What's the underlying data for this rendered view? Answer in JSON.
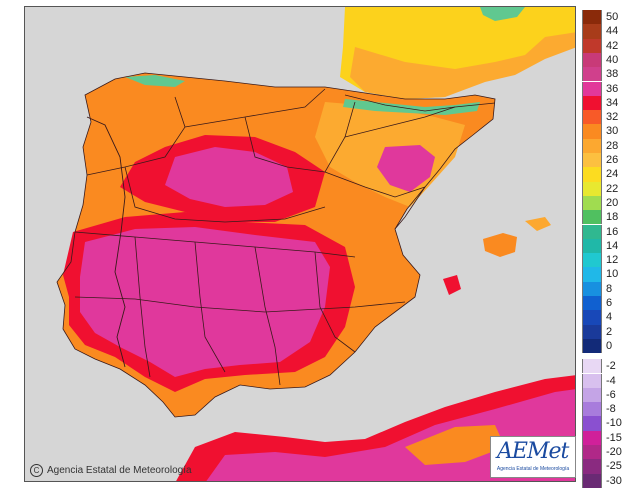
{
  "credit_text": "Agencia Estatal de Meteorología",
  "copyright_symbol": "C",
  "logo": {
    "wordmark": "AEMet",
    "subtitle": "Agencia Estatal de Meteorología"
  },
  "legend": {
    "scale": [
      {
        "label": "50",
        "color": "#8a2a0a"
      },
      {
        "label": "44",
        "color": "#a83c1a"
      },
      {
        "label": "42",
        "color": "#c0392b"
      },
      {
        "label": "40",
        "color": "#c83a78"
      },
      {
        "label": "38",
        "color": "#d0408c"
      },
      {
        "label": "36",
        "color": "#e2389a"
      },
      {
        "label": "34",
        "color": "#f01030"
      },
      {
        "label": "32",
        "color": "#f85a28"
      },
      {
        "label": "30",
        "color": "#fa8a20"
      },
      {
        "label": "28",
        "color": "#fca830"
      },
      {
        "label": "26",
        "color": "#fcc040"
      },
      {
        "label": "24",
        "color": "#fcdc20"
      },
      {
        "label": "22",
        "color": "#e8e830"
      },
      {
        "label": "20",
        "color": "#a0dc50"
      },
      {
        "label": "18",
        "color": "#50c060"
      },
      {
        "label": "16",
        "color": "#30b890"
      },
      {
        "label": "14",
        "color": "#20b8a8"
      },
      {
        "label": "12",
        "color": "#20c8d0"
      },
      {
        "label": "10",
        "color": "#20b8e8"
      },
      {
        "label": "8",
        "color": "#1890e0"
      },
      {
        "label": "6",
        "color": "#1060d0"
      },
      {
        "label": "4",
        "color": "#1848b8"
      },
      {
        "label": "2",
        "color": "#1a3a9a"
      },
      {
        "label": "0",
        "color": "#122a78"
      },
      {
        "label": "-2",
        "color": "#e8d8f4"
      },
      {
        "label": "-4",
        "color": "#d8c0ee"
      },
      {
        "label": "-6",
        "color": "#c4a4e6"
      },
      {
        "label": "-8",
        "color": "#a87cdc"
      },
      {
        "label": "-10",
        "color": "#8a50d0"
      },
      {
        "label": "-15",
        "color": "#d0209a"
      },
      {
        "label": "-20",
        "color": "#b02888"
      },
      {
        "label": "-25",
        "color": "#8a2a80"
      },
      {
        "label": "-30",
        "color": "#6a2a74"
      }
    ]
  },
  "colors": {
    "sea": "#d6d6d6",
    "land_outside": "#d2d2d2",
    "france_yellow": "#fcd21c",
    "coast_red": "#f01030",
    "hot_magenta": "#e0389c",
    "orange": "#fa8a20",
    "light_orange": "#fcaa30",
    "mountain_green": "#60c890",
    "border": "#3a1a1a"
  }
}
